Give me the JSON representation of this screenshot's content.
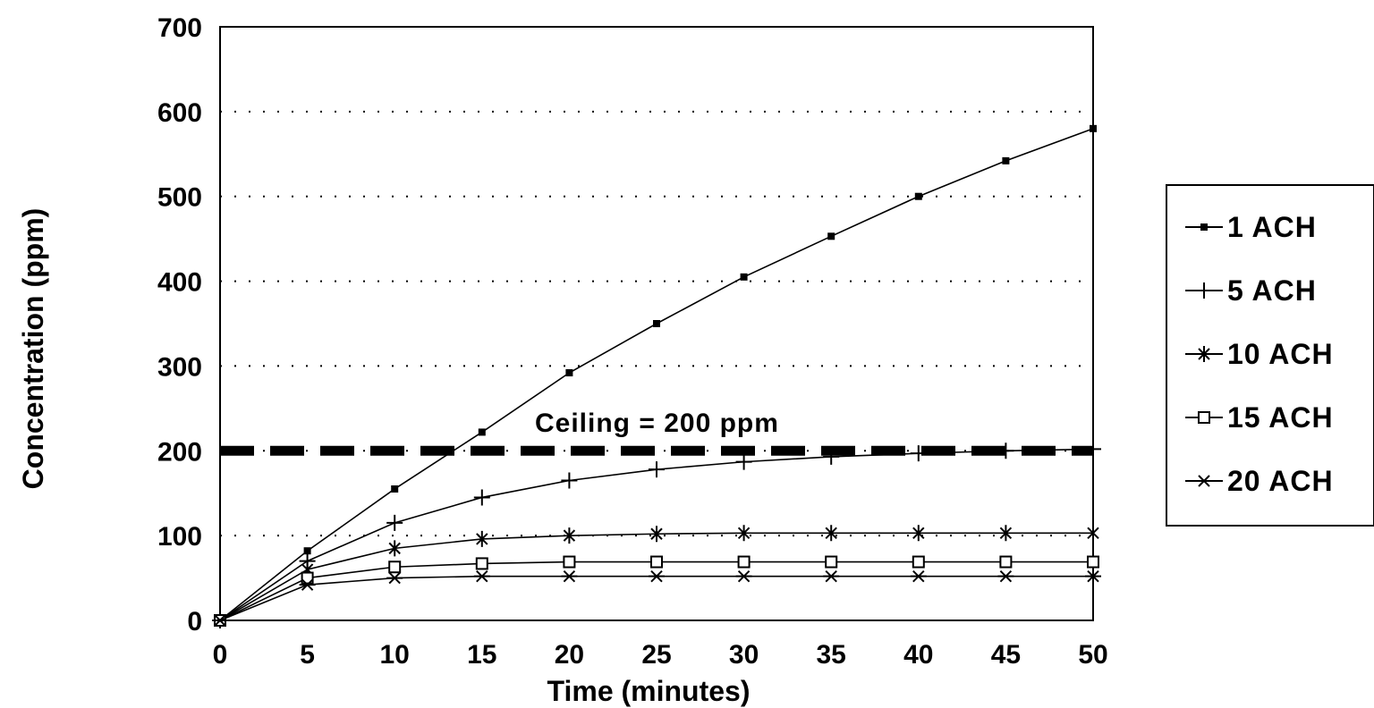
{
  "chart_data": {
    "type": "line",
    "title": "",
    "xlabel": "Time (minutes)",
    "ylabel": "Concentration (ppm)",
    "xlim": [
      0,
      50
    ],
    "ylim": [
      0,
      700
    ],
    "x_ticks": [
      0,
      5,
      10,
      15,
      20,
      25,
      30,
      35,
      40,
      45,
      50
    ],
    "y_ticks": [
      0,
      100,
      200,
      300,
      400,
      500,
      600,
      700
    ],
    "grid": "horizontal dotted",
    "legend_position": "right",
    "x": [
      0,
      5,
      10,
      15,
      20,
      25,
      30,
      35,
      40,
      45,
      50
    ],
    "series": [
      {
        "name": "1 ACH",
        "marker": "square-filled",
        "values": [
          0,
          82,
          155,
          222,
          292,
          350,
          405,
          453,
          500,
          542,
          580
        ]
      },
      {
        "name": "5 ACH",
        "marker": "plus",
        "values": [
          0,
          70,
          115,
          145,
          165,
          178,
          187,
          193,
          197,
          200,
          202
        ]
      },
      {
        "name": "10 ACH",
        "marker": "asterisk",
        "values": [
          0,
          60,
          85,
          96,
          100,
          102,
          103,
          103,
          103,
          103,
          103
        ]
      },
      {
        "name": "15 ACH",
        "marker": "square-open",
        "values": [
          0,
          50,
          63,
          67,
          69,
          69,
          69,
          69,
          69,
          69,
          69
        ]
      },
      {
        "name": "20 ACH",
        "marker": "x-cross",
        "values": [
          0,
          42,
          50,
          52,
          52,
          52,
          52,
          52,
          52,
          52,
          52
        ]
      }
    ],
    "reference_line": {
      "label": "Ceiling = 200 ppm",
      "value": 200,
      "style": "dashed"
    }
  }
}
